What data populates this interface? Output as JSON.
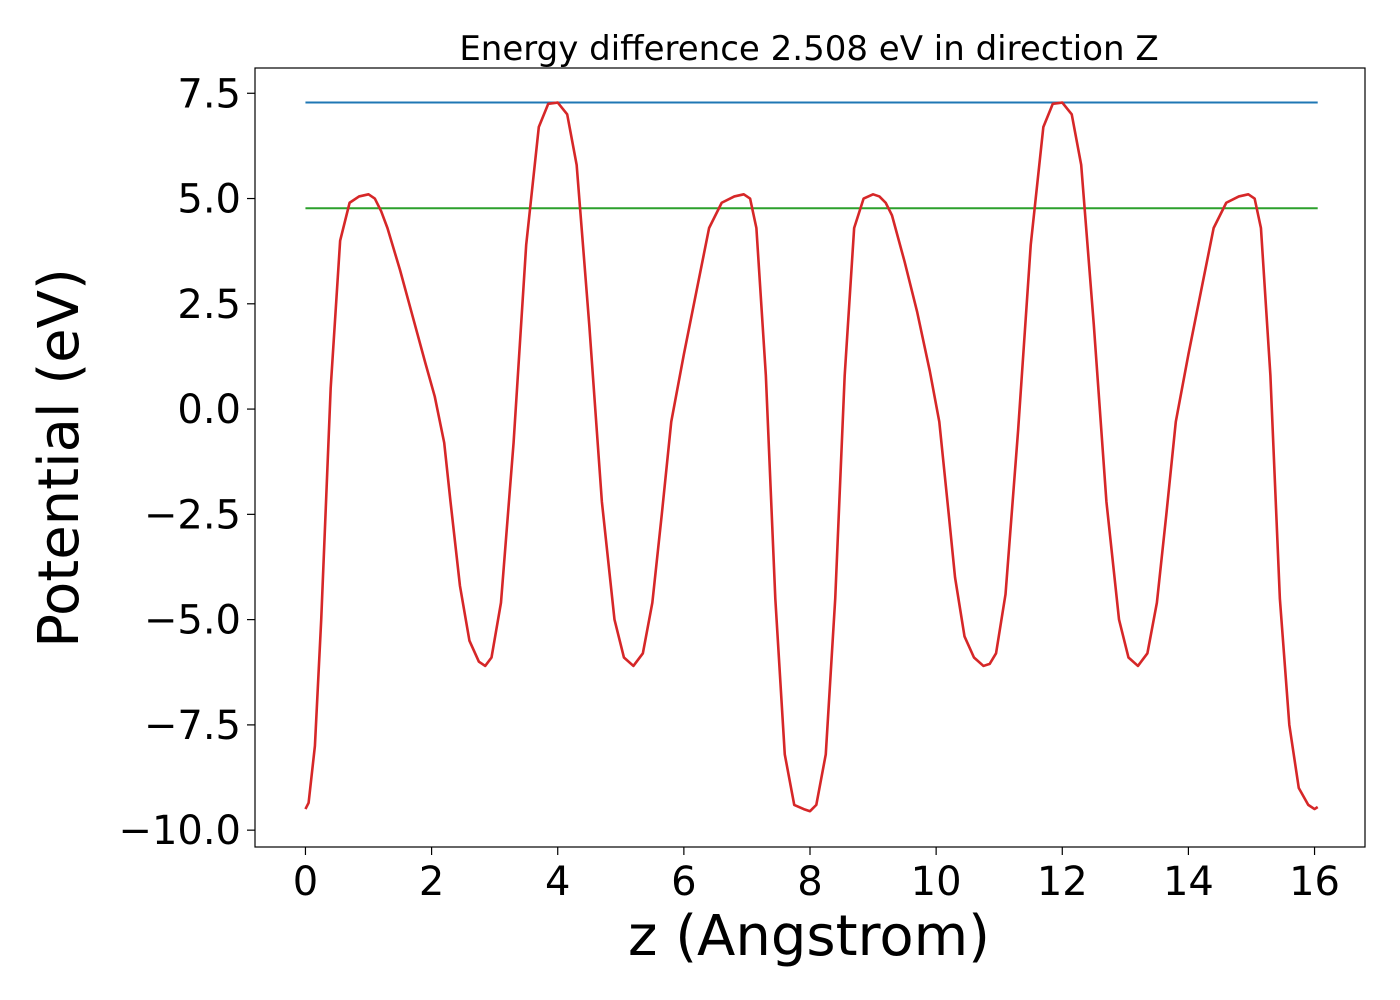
{
  "chart_data": {
    "type": "line",
    "title": "Energy difference 2.508 eV in direction Z",
    "xlabel": "z (Angstrom)",
    "ylabel": "Potential (eV)",
    "xlim": [
      -0.8,
      16.8
    ],
    "ylim": [
      -10.4,
      8.1
    ],
    "xticks": [
      0,
      2,
      4,
      6,
      8,
      10,
      12,
      14,
      16
    ],
    "xtick_labels": [
      "0",
      "2",
      "4",
      "6",
      "8",
      "10",
      "12",
      "14",
      "16"
    ],
    "yticks": [
      -10.0,
      -7.5,
      -5.0,
      -2.5,
      0.0,
      2.5,
      5.0,
      7.5
    ],
    "ytick_labels": [
      "−10.0",
      "−7.5",
      "−5.0",
      "−2.5",
      "0.0",
      "2.5",
      "5.0",
      "7.5"
    ],
    "grid": false,
    "series": [
      {
        "color": "#d62728",
        "x": [
          0,
          0.05,
          0.15,
          0.25,
          0.4,
          0.55,
          0.7,
          0.85,
          1.0,
          1.1,
          1.2,
          1.3,
          1.5,
          1.7,
          1.9,
          2.05,
          2.2,
          2.3,
          2.45,
          2.6,
          2.75,
          2.85,
          2.95,
          3.1,
          3.3,
          3.5,
          3.7,
          3.85,
          4.0,
          4.15,
          4.3,
          4.5,
          4.7,
          4.9,
          5.05,
          5.2,
          5.35,
          5.5,
          5.65,
          5.8,
          6.0,
          6.2,
          6.4,
          6.6,
          6.8,
          6.95,
          7.05,
          7.15,
          7.3,
          7.45,
          7.6,
          7.75,
          7.9,
          8.0,
          8.1,
          8.25,
          8.4,
          8.55,
          8.7,
          8.85,
          9.0,
          9.1,
          9.2,
          9.3,
          9.5,
          9.7,
          9.9,
          10.05,
          10.2,
          10.3,
          10.45,
          10.6,
          10.75,
          10.85,
          10.95,
          11.1,
          11.3,
          11.5,
          11.7,
          11.85,
          12.0,
          12.15,
          12.3,
          12.5,
          12.7,
          12.9,
          13.05,
          13.2,
          13.35,
          13.5,
          13.65,
          13.8,
          14.0,
          14.2,
          14.4,
          14.6,
          14.8,
          14.95,
          15.05,
          15.15,
          15.3,
          15.45,
          15.6,
          15.75,
          15.9,
          16.0,
          16.05
        ],
        "y": [
          -9.5,
          -9.35,
          -8.0,
          -5.0,
          0.5,
          4.0,
          4.9,
          5.05,
          5.1,
          5.0,
          4.7,
          4.3,
          3.3,
          2.2,
          1.1,
          0.3,
          -0.8,
          -2.2,
          -4.2,
          -5.5,
          -6.0,
          -6.1,
          -5.9,
          -4.6,
          -0.8,
          3.9,
          6.7,
          7.25,
          7.28,
          7.0,
          5.8,
          2.0,
          -2.2,
          -5.0,
          -5.9,
          -6.1,
          -5.8,
          -4.6,
          -2.5,
          -0.3,
          1.3,
          2.8,
          4.3,
          4.9,
          5.05,
          5.1,
          5.0,
          4.3,
          0.8,
          -4.5,
          -8.2,
          -9.4,
          -9.5,
          -9.55,
          -9.4,
          -8.2,
          -4.5,
          0.8,
          4.3,
          5.0,
          5.1,
          5.05,
          4.9,
          4.6,
          3.5,
          2.3,
          0.9,
          -0.3,
          -2.5,
          -4.0,
          -5.4,
          -5.9,
          -6.1,
          -6.05,
          -5.8,
          -4.4,
          -0.5,
          3.9,
          6.7,
          7.25,
          7.28,
          7.0,
          5.8,
          2.0,
          -2.2,
          -5.0,
          -5.9,
          -6.1,
          -5.8,
          -4.6,
          -2.5,
          -0.3,
          1.3,
          2.8,
          4.3,
          4.9,
          5.05,
          5.1,
          5.0,
          4.3,
          0.8,
          -4.5,
          -7.5,
          -9.0,
          -9.4,
          -9.5,
          -9.45
        ]
      },
      {
        "color": "#1f77b4",
        "x": [
          0,
          16.05
        ],
        "y": [
          7.28,
          7.28
        ]
      },
      {
        "color": "#2ca02c",
        "x": [
          0,
          16.05
        ],
        "y": [
          4.77,
          4.77
        ]
      }
    ]
  }
}
